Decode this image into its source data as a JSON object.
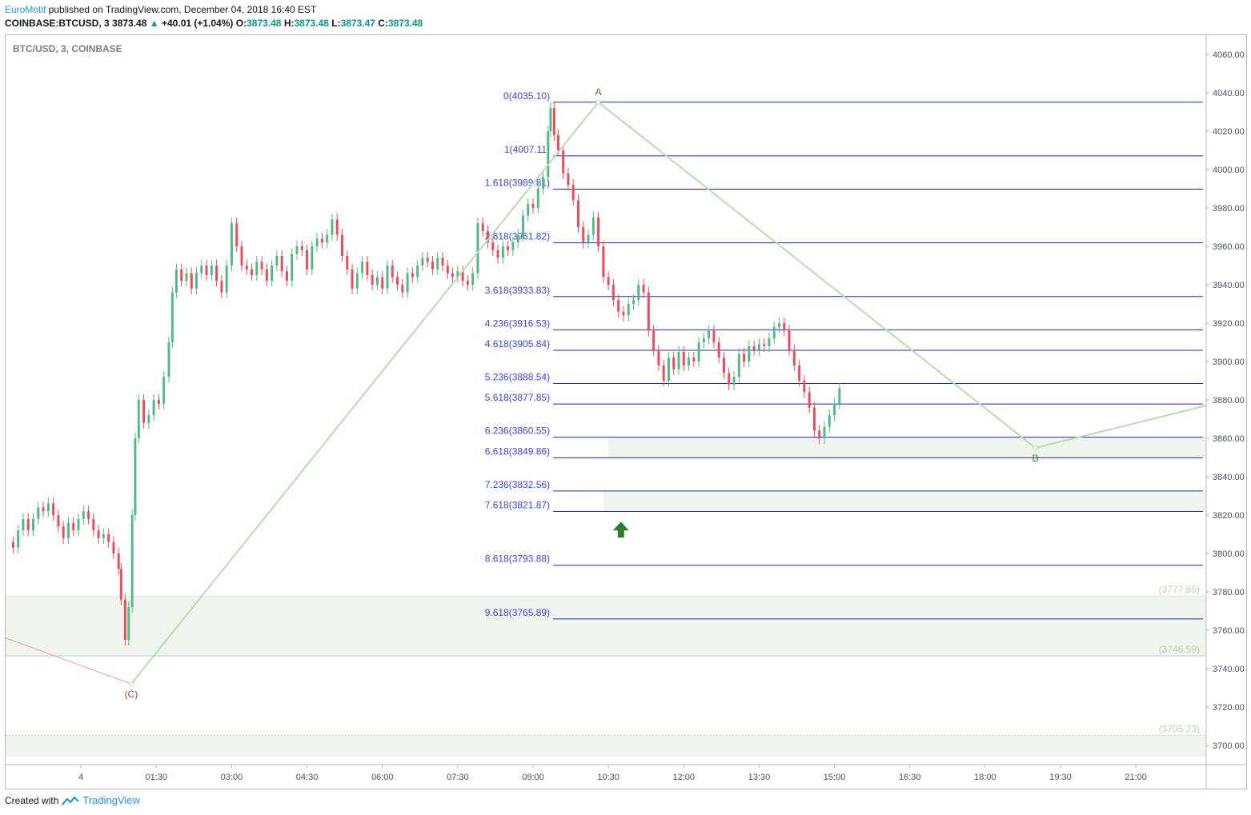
{
  "header": {
    "author": "EuroMotif",
    "published_text": "published on TradingView.com, December 04, 2018 16:40 EST",
    "symbol": "COINBASE:BTCUSD, 3",
    "last": "3873.48",
    "change_arrow": "▲",
    "change": "+40.01 (+1.04%)",
    "o_label": "O:",
    "o_value": "3873.48",
    "h_label": "H:",
    "h_value": "3873.48",
    "l_label": "L:",
    "l_value": "3873.47",
    "c_label": "C:",
    "c_value": "3873.48"
  },
  "footer": {
    "created_with": "Created with",
    "brand": "TradingView",
    "logo_icon": "tradingview-logo-icon"
  },
  "colors": {
    "up": "#53b987",
    "down": "#eb4d5c",
    "fib_line": "#1f2ab8",
    "fib_label": "#3c44e0",
    "wave": "#b9dcb1",
    "zone_fill": "#eff5ec",
    "arrow": "#2e7d32",
    "price_label": "#8f9399"
  },
  "chart_data": {
    "type": "candlestick",
    "title": "BTC/USD, 3, COINBASE",
    "ylim": [
      3690,
      4070
    ],
    "yticks": [
      3700,
      3720,
      3740,
      3760,
      3780,
      3800,
      3820,
      3840,
      3860,
      3880,
      3900,
      3920,
      3940,
      3960,
      3980,
      4000,
      4020,
      4040,
      4060
    ],
    "ytick_labels": [
      "3700.00",
      "3720.00",
      "3740.00",
      "3760.00",
      "3780.00",
      "3800.00",
      "3820.00",
      "3840.00",
      "3860.00",
      "3880.00",
      "3900.00",
      "3920.00",
      "3940.00",
      "3960.00",
      "3980.00",
      "4000.00",
      "4020.00",
      "4040.00",
      "4060.00"
    ],
    "xtick_labels": [
      "4",
      "01:30",
      "03:00",
      "04:30",
      "06:00",
      "07:30",
      "09:00",
      "10:30",
      "12:00",
      "13:30",
      "15:00",
      "16:30",
      "18:00",
      "19:30",
      "21:00"
    ],
    "xtick_hours": [
      0,
      1.5,
      3,
      4.5,
      6,
      7.5,
      9,
      10.5,
      12,
      13.5,
      15,
      16.5,
      18,
      19.5,
      21
    ],
    "x_range_hours": [
      -1.5,
      22.4
    ],
    "fib_levels": [
      {
        "ratio": "0",
        "value": 4035.1,
        "label": "0(4035.10)"
      },
      {
        "ratio": "1",
        "value": 4007.11,
        "label": "1(4007.11)"
      },
      {
        "ratio": "1.618",
        "value": 3989.81,
        "label": "1.618(3989.81)"
      },
      {
        "ratio": "2.618",
        "value": 3961.82,
        "label": "2.618(3961.82)"
      },
      {
        "ratio": "3.618",
        "value": 3933.83,
        "label": "3.618(3933.83)"
      },
      {
        "ratio": "4.236",
        "value": 3916.53,
        "label": "4.236(3916.53)"
      },
      {
        "ratio": "4.618",
        "value": 3905.84,
        "label": "4.618(3905.84)"
      },
      {
        "ratio": "5.236",
        "value": 3888.54,
        "label": "5.236(3888.54)"
      },
      {
        "ratio": "5.618",
        "value": 3877.85,
        "label": "5.618(3877.85)"
      },
      {
        "ratio": "6.236",
        "value": 3860.55,
        "label": "6.236(3860.55)"
      },
      {
        "ratio": "6.618",
        "value": 3849.86,
        "label": "6.618(3849.86)"
      },
      {
        "ratio": "7.236",
        "value": 3832.56,
        "label": "7.236(3832.56)"
      },
      {
        "ratio": "7.618",
        "value": 3821.87,
        "label": "7.618(3821.87)"
      },
      {
        "ratio": "8.618",
        "value": 3793.88,
        "label": "8.618(3793.88)"
      },
      {
        "ratio": "9.618",
        "value": 3765.89,
        "label": "9.618(3765.89)"
      }
    ],
    "zones": [
      {
        "from": 3849.86,
        "to": 3860.55,
        "start_hour": 10.5
      },
      {
        "from": 3821.87,
        "to": 3832.56,
        "start_hour": 10.4
      },
      {
        "from": 3746.59,
        "to": 3777.85,
        "start_hour": -1.5
      },
      {
        "from": 3694,
        "to": 3705.23,
        "start_hour": -1.5
      }
    ],
    "price_labels": [
      "(3777.85)",
      "(3746.59)",
      "(3705.23)"
    ],
    "price_label_values": [
      3777.85,
      3746.59,
      3705.23
    ],
    "wave_points": [
      {
        "label": "(C)",
        "hour": 1.0,
        "value": 3732
      },
      {
        "label": "A",
        "hour": 10.3,
        "value": 4035.1
      },
      {
        "label": "B",
        "hour": 19.0,
        "value": 3855
      },
      {
        "label": "",
        "hour": 22.4,
        "value": 3877
      }
    ],
    "prior_leg": [
      {
        "hour": -1.5,
        "value": 3756
      },
      {
        "hour": 1.0,
        "value": 3732
      }
    ],
    "support_arrow": {
      "hour": 10.75,
      "value": 3812
    },
    "closes": [
      [
        -1.45,
        3806
      ],
      [
        -1.35,
        3803
      ],
      [
        -1.25,
        3812
      ],
      [
        -1.15,
        3818
      ],
      [
        -1.05,
        3812
      ],
      [
        -0.95,
        3818
      ],
      [
        -0.85,
        3824
      ],
      [
        -0.75,
        3822
      ],
      [
        -0.65,
        3826
      ],
      [
        -0.55,
        3820
      ],
      [
        -0.45,
        3814
      ],
      [
        -0.35,
        3808
      ],
      [
        -0.25,
        3816
      ],
      [
        -0.15,
        3812
      ],
      [
        -0.05,
        3818
      ],
      [
        0.05,
        3822
      ],
      [
        0.15,
        3818
      ],
      [
        0.25,
        3812
      ],
      [
        0.35,
        3808
      ],
      [
        0.45,
        3810
      ],
      [
        0.55,
        3806
      ],
      [
        0.65,
        3800
      ],
      [
        0.75,
        3792
      ],
      [
        0.8,
        3776
      ],
      [
        0.88,
        3755
      ],
      [
        0.95,
        3772
      ],
      [
        1.02,
        3820
      ],
      [
        1.08,
        3860
      ],
      [
        1.15,
        3880
      ],
      [
        1.25,
        3868
      ],
      [
        1.35,
        3872
      ],
      [
        1.45,
        3880
      ],
      [
        1.55,
        3878
      ],
      [
        1.65,
        3892
      ],
      [
        1.75,
        3910
      ],
      [
        1.82,
        3936
      ],
      [
        1.9,
        3948
      ],
      [
        2.0,
        3942
      ],
      [
        2.1,
        3946
      ],
      [
        2.2,
        3938
      ],
      [
        2.3,
        3946
      ],
      [
        2.4,
        3950
      ],
      [
        2.5,
        3945
      ],
      [
        2.6,
        3950
      ],
      [
        2.7,
        3942
      ],
      [
        2.8,
        3936
      ],
      [
        2.9,
        3950
      ],
      [
        3.0,
        3972
      ],
      [
        3.1,
        3960
      ],
      [
        3.2,
        3950
      ],
      [
        3.3,
        3948
      ],
      [
        3.4,
        3945
      ],
      [
        3.5,
        3952
      ],
      [
        3.6,
        3948
      ],
      [
        3.7,
        3942
      ],
      [
        3.8,
        3950
      ],
      [
        3.9,
        3955
      ],
      [
        4.0,
        3947
      ],
      [
        4.1,
        3942
      ],
      [
        4.2,
        3956
      ],
      [
        4.3,
        3960
      ],
      [
        4.4,
        3958
      ],
      [
        4.5,
        3948
      ],
      [
        4.6,
        3960
      ],
      [
        4.7,
        3964
      ],
      [
        4.8,
        3962
      ],
      [
        4.9,
        3966
      ],
      [
        5.0,
        3974
      ],
      [
        5.1,
        3966
      ],
      [
        5.2,
        3955
      ],
      [
        5.3,
        3948
      ],
      [
        5.4,
        3938
      ],
      [
        5.5,
        3946
      ],
      [
        5.6,
        3952
      ],
      [
        5.7,
        3945
      ],
      [
        5.8,
        3940
      ],
      [
        5.9,
        3944
      ],
      [
        6.0,
        3938
      ],
      [
        6.1,
        3950
      ],
      [
        6.2,
        3944
      ],
      [
        6.3,
        3940
      ],
      [
        6.4,
        3936
      ],
      [
        6.5,
        3946
      ],
      [
        6.6,
        3944
      ],
      [
        6.7,
        3950
      ],
      [
        6.8,
        3954
      ],
      [
        6.9,
        3952
      ],
      [
        7.0,
        3948
      ],
      [
        7.1,
        3954
      ],
      [
        7.2,
        3950
      ],
      [
        7.3,
        3946
      ],
      [
        7.4,
        3944
      ],
      [
        7.5,
        3947
      ],
      [
        7.6,
        3942
      ],
      [
        7.7,
        3940
      ],
      [
        7.8,
        3946
      ],
      [
        7.9,
        3972
      ],
      [
        8.0,
        3968
      ],
      [
        8.1,
        3962
      ],
      [
        8.2,
        3958
      ],
      [
        8.3,
        3954
      ],
      [
        8.4,
        3960
      ],
      [
        8.5,
        3958
      ],
      [
        8.6,
        3962
      ],
      [
        8.7,
        3966
      ],
      [
        8.8,
        3976
      ],
      [
        8.9,
        3982
      ],
      [
        9.0,
        3980
      ],
      [
        9.1,
        3990
      ],
      [
        9.2,
        3996
      ],
      [
        9.3,
        4020
      ],
      [
        9.35,
        4032
      ],
      [
        9.42,
        4018
      ],
      [
        9.5,
        4010
      ],
      [
        9.6,
        3998
      ],
      [
        9.7,
        3992
      ],
      [
        9.8,
        3984
      ],
      [
        9.9,
        3970
      ],
      [
        10.0,
        3962
      ],
      [
        10.1,
        3966
      ],
      [
        10.2,
        3975
      ],
      [
        10.3,
        3960
      ],
      [
        10.4,
        3944
      ],
      [
        10.5,
        3940
      ],
      [
        10.6,
        3932
      ],
      [
        10.7,
        3926
      ],
      [
        10.8,
        3924
      ],
      [
        10.9,
        3930
      ],
      [
        11.0,
        3932
      ],
      [
        11.1,
        3940
      ],
      [
        11.2,
        3936
      ],
      [
        11.3,
        3916
      ],
      [
        11.4,
        3906
      ],
      [
        11.5,
        3898
      ],
      [
        11.6,
        3890
      ],
      [
        11.7,
        3902
      ],
      [
        11.8,
        3896
      ],
      [
        11.9,
        3905
      ],
      [
        12.0,
        3898
      ],
      [
        12.1,
        3902
      ],
      [
        12.2,
        3900
      ],
      [
        12.3,
        3910
      ],
      [
        12.4,
        3912
      ],
      [
        12.5,
        3916
      ],
      [
        12.6,
        3910
      ],
      [
        12.7,
        3902
      ],
      [
        12.8,
        3894
      ],
      [
        12.9,
        3888
      ],
      [
        13.0,
        3892
      ],
      [
        13.1,
        3904
      ],
      [
        13.2,
        3900
      ],
      [
        13.3,
        3908
      ],
      [
        13.4,
        3906
      ],
      [
        13.5,
        3909
      ],
      [
        13.6,
        3908
      ],
      [
        13.7,
        3912
      ],
      [
        13.8,
        3918
      ],
      [
        13.9,
        3920
      ],
      [
        14.0,
        3916
      ],
      [
        14.1,
        3906
      ],
      [
        14.2,
        3898
      ],
      [
        14.3,
        3890
      ],
      [
        14.4,
        3884
      ],
      [
        14.5,
        3876
      ],
      [
        14.6,
        3864
      ],
      [
        14.7,
        3860
      ],
      [
        14.8,
        3866
      ],
      [
        14.9,
        3872
      ],
      [
        15.0,
        3878
      ],
      [
        15.1,
        3886
      ]
    ]
  }
}
